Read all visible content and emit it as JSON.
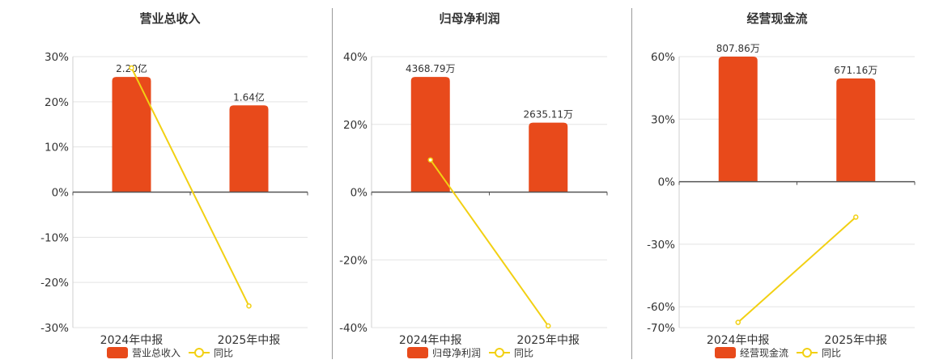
{
  "colors": {
    "bar": "#e84a1b",
    "line": "#f2d013",
    "grid": "#e3e3e3",
    "axis": "#555555"
  },
  "chart_data": [
    {
      "type": "bar",
      "title": "营业总收入",
      "categories": [
        "2024年中报",
        "2025年中报"
      ],
      "ylim": [
        -30,
        30
      ],
      "yticks": [
        -30,
        -20,
        -10,
        0,
        10,
        20,
        30
      ],
      "ytick_labels": [
        "-30%",
        "-20%",
        "-10%",
        "0%",
        "10%",
        "20%",
        "30%"
      ],
      "series": [
        {
          "name": "营业总收入",
          "kind": "bar",
          "values": [
            25.5,
            19.2
          ],
          "labels": [
            "2.20亿",
            "1.64亿"
          ]
        },
        {
          "name": "同比",
          "kind": "line",
          "values": [
            27.5,
            -25.2
          ]
        }
      ],
      "legend": "bottom",
      "grid": true
    },
    {
      "type": "bar",
      "title": "归母净利润",
      "categories": [
        "2024年中报",
        "2025年中报"
      ],
      "ylim": [
        -40,
        40
      ],
      "yticks": [
        -40,
        -20,
        0,
        20,
        40
      ],
      "ytick_labels": [
        "-40%",
        "-20%",
        "0%",
        "20%",
        "40%"
      ],
      "series": [
        {
          "name": "归母净利润",
          "kind": "bar",
          "values": [
            34,
            20.5
          ],
          "labels": [
            "4368.79万",
            "2635.11万"
          ]
        },
        {
          "name": "同比",
          "kind": "line",
          "values": [
            9.5,
            -39.5
          ]
        }
      ],
      "legend": "bottom",
      "grid": true
    },
    {
      "type": "bar",
      "title": "经营现金流",
      "categories": [
        "2024年中报",
        "2025年中报"
      ],
      "ylim": [
        -70,
        60
      ],
      "yticks": [
        -70,
        -60,
        -30,
        0,
        30,
        60
      ],
      "ytick_labels": [
        "-70%",
        "-60%",
        "-30%",
        "0%",
        "30%",
        "60%"
      ],
      "series": [
        {
          "name": "经营现金流",
          "kind": "bar",
          "values": [
            60,
            49.5
          ],
          "labels": [
            "807.86万",
            "671.16万"
          ]
        },
        {
          "name": "同比",
          "kind": "line",
          "values": [
            -67.5,
            -17
          ]
        }
      ],
      "legend": "bottom",
      "grid": true
    }
  ]
}
